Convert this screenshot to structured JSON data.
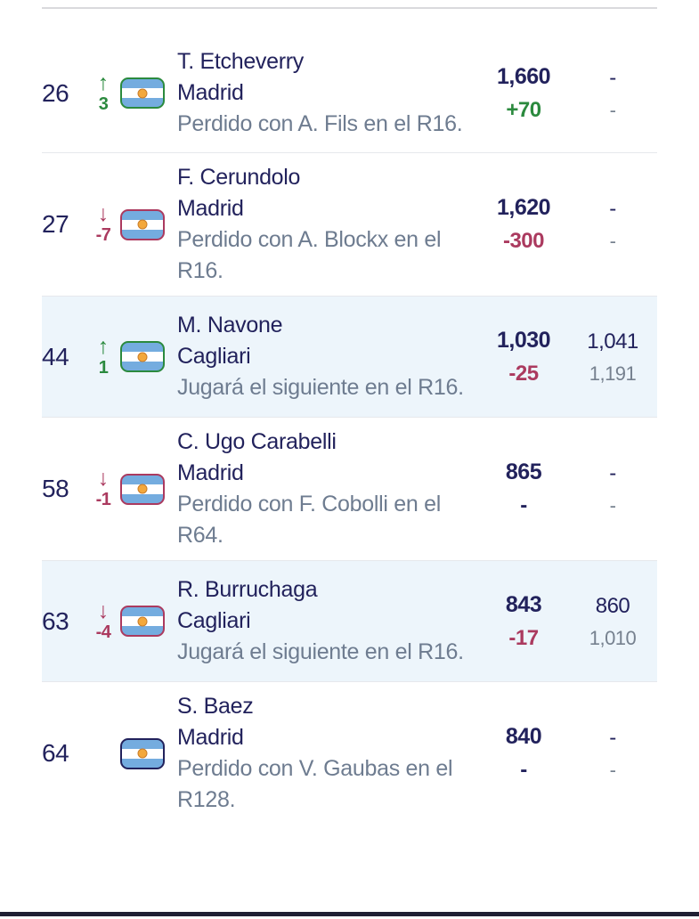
{
  "colors": {
    "text_navy": "#22225c",
    "text_slate": "#6e7c90",
    "positive_green": "#2b8a3e",
    "negative_red": "#ab3a5f",
    "highlight_row_bg": "#edf5fb",
    "separator": "#e6e8ec",
    "flag_blue": "#74acdf",
    "sun_orange": "#f3a83c",
    "bottom_bar": "#1f1f33"
  },
  "table": {
    "rows": [
      {
        "rank": "26",
        "arrow": "↑",
        "movement": "3",
        "movement_dir": "up",
        "flag_icon": "argentina-flag",
        "name": "T. Etcheverry",
        "city": "Madrid",
        "status": "Perdido con A. Fils en el R16.",
        "points": "1,660",
        "points_change": "+70",
        "change_dir": "up",
        "live_points": "-",
        "next_points": "-",
        "highlighted": false
      },
      {
        "rank": "27",
        "arrow": "↓",
        "movement": "-7",
        "movement_dir": "down",
        "flag_icon": "argentina-flag",
        "name": "F. Cerundolo",
        "city": "Madrid",
        "status": "Perdido con A. Blockx en el R16.",
        "points": "1,620",
        "points_change": "-300",
        "change_dir": "down",
        "live_points": "-",
        "next_points": "-",
        "highlighted": false
      },
      {
        "rank": "44",
        "arrow": "↑",
        "movement": "1",
        "movement_dir": "up",
        "flag_icon": "argentina-flag",
        "name": "M. Navone",
        "city": "Cagliari",
        "status": "Jugará el siguiente en el R16.",
        "points": "1,030",
        "points_change": "-25",
        "change_dir": "down",
        "live_points": "1,041",
        "next_points": "1,191",
        "highlighted": true
      },
      {
        "rank": "58",
        "arrow": "↓",
        "movement": "-1",
        "movement_dir": "down",
        "flag_icon": "argentina-flag",
        "name": "C. Ugo Carabelli",
        "city": "Madrid",
        "status": "Perdido con F. Cobolli en el R64.",
        "points": "865",
        "points_change": "-",
        "change_dir": "none",
        "live_points": "-",
        "next_points": "-",
        "highlighted": false
      },
      {
        "rank": "63",
        "arrow": "↓",
        "movement": "-4",
        "movement_dir": "down",
        "flag_icon": "argentina-flag",
        "name": "R. Burruchaga",
        "city": "Cagliari",
        "status": "Jugará el siguiente en el R16.",
        "points": "843",
        "points_change": "-17",
        "change_dir": "down",
        "live_points": "860",
        "next_points": "1,010",
        "highlighted": true
      },
      {
        "rank": "64",
        "arrow": "",
        "movement": "",
        "movement_dir": "none",
        "flag_icon": "argentina-flag",
        "name": "S. Baez",
        "city": "Madrid",
        "status": "Perdido con V. Gaubas en el R128.",
        "points": "840",
        "points_change": "-",
        "change_dir": "none",
        "live_points": "-",
        "next_points": "-",
        "highlighted": false
      }
    ]
  }
}
